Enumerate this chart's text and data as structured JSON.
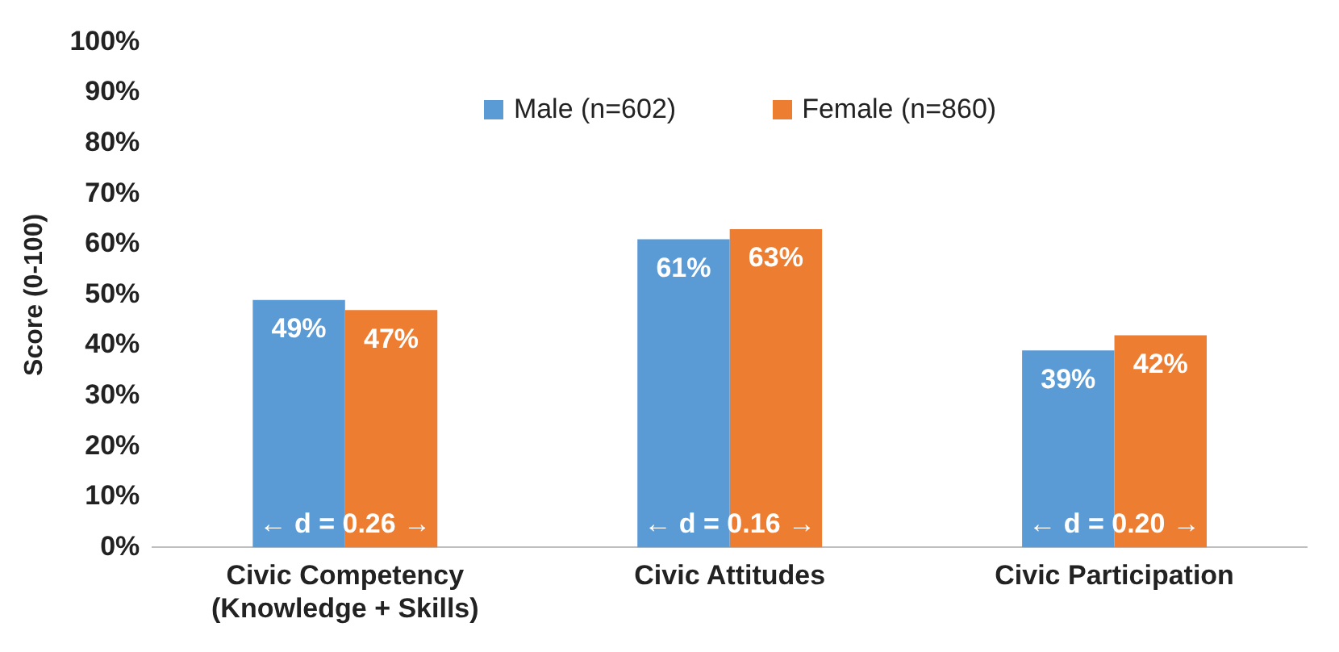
{
  "chart_data": {
    "type": "bar",
    "ylabel": "Score (0-100)",
    "categories": [
      "Civic Competency (Knowledge + Skills)",
      "Civic Attitudes",
      "Civic Participation"
    ],
    "series": [
      {
        "name": "Male (n=602)",
        "color": "#5b9bd5",
        "values": [
          49,
          61,
          39
        ]
      },
      {
        "name": "Female (n=860)",
        "color": "#ed7d31",
        "values": [
          47,
          63,
          42
        ]
      }
    ],
    "value_labels": [
      [
        "49%",
        "61%",
        "39%"
      ],
      [
        "47%",
        "63%",
        "42%"
      ]
    ],
    "ylim": [
      0,
      100
    ],
    "yticks": [
      {
        "value": 0,
        "label": "0%"
      },
      {
        "value": 10,
        "label": "10%"
      },
      {
        "value": 20,
        "label": "20%"
      },
      {
        "value": 30,
        "label": "30%"
      },
      {
        "value": 40,
        "label": "40%"
      },
      {
        "value": 50,
        "label": "50%"
      },
      {
        "value": 60,
        "label": "60%"
      },
      {
        "value": 70,
        "label": "70%"
      },
      {
        "value": 80,
        "label": "80%"
      },
      {
        "value": 90,
        "label": "90%"
      },
      {
        "value": 100,
        "label": "100%"
      }
    ],
    "annotations": [
      "← d = 0.26 →",
      "← d = 0.16 →",
      "← d = 0.20 →"
    ],
    "grid": false,
    "legend": "top"
  }
}
